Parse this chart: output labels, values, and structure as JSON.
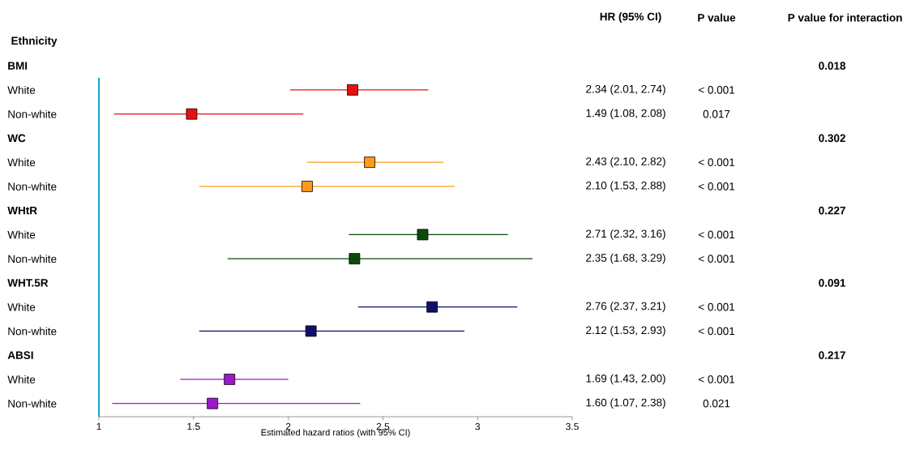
{
  "chart_data": {
    "type": "scatter",
    "orientation": "horizontal",
    "marker": "square",
    "ylabel": "Ethnicity",
    "xlabel": "Estimated hazard ratios (with 95% CI)",
    "xlim": [
      1,
      3.5
    ],
    "xticks": [
      1,
      1.5,
      2,
      2.5,
      3,
      3.5
    ],
    "categories": [
      "BMI",
      "White",
      "Non-white",
      "WC",
      "White",
      "Non-white",
      "WHtR",
      "White",
      "Non-white",
      "WHT.5R",
      "White",
      "Non-white",
      "ABSI",
      "White",
      "Non-white"
    ],
    "values": [
      null,
      2.34,
      1.49,
      null,
      2.43,
      2.1,
      null,
      2.71,
      2.35,
      null,
      2.76,
      2.12,
      null,
      1.69,
      1.6
    ],
    "colors": [
      null,
      "#e8100f",
      "#e8100f",
      null,
      "#ff9a1a",
      "#ff9a1a",
      null,
      "#0b4a0b",
      "#0b4a0b",
      null,
      "#10106a",
      "#10106a",
      null,
      "#9a1ac8",
      "#9a1ac8"
    ],
    "errors": [
      null,
      [
        2.01,
        2.74
      ],
      [
        1.08,
        2.08
      ],
      null,
      [
        2.1,
        2.82
      ],
      [
        1.53,
        2.88
      ],
      null,
      [
        2.32,
        3.16
      ],
      [
        1.68,
        3.29
      ],
      null,
      [
        2.37,
        3.21
      ],
      [
        1.53,
        2.93
      ],
      null,
      [
        1.43,
        2.0
      ],
      [
        1.07,
        2.38
      ]
    ],
    "value_labels": [
      null,
      "2.34 (2.01, 2.74)",
      "1.49 (1.08, 2.08)",
      null,
      "2.43 (2.10, 2.82)",
      "2.10 (1.53, 2.88)",
      null,
      "2.71 (2.32, 3.16)",
      "2.35 (1.68, 3.29)",
      null,
      "2.76 (2.37, 3.21)",
      "2.12 (1.53, 2.93)",
      null,
      "1.69 (1.43, 2.00)",
      "1.60 (1.07, 2.38)"
    ],
    "annotations": [
      "HR (95% CI)",
      "P value",
      "P value for interaction",
      "< 0.001",
      "0.017",
      "< 0.001",
      "< 0.001",
      "< 0.001",
      "< 0.001",
      "< 0.001",
      "< 0.001",
      "< 0.001",
      "0.021",
      "0.018",
      "0.302",
      "0.227",
      "0.091",
      "0.217"
    ]
  }
}
